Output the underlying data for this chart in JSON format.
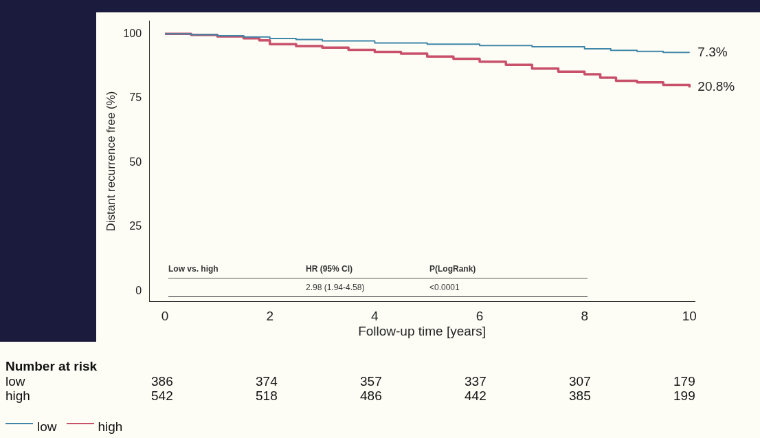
{
  "chart_data": {
    "type": "step",
    "xlabel": "Follow-up time [years]",
    "ylabel": "Distant recurrence free (%)",
    "xlim": [
      -0.3,
      10.1
    ],
    "ylim": [
      -4,
      105
    ],
    "xticks": [
      0,
      2,
      4,
      6,
      8,
      10
    ],
    "yticks": [
      0,
      25,
      50,
      75,
      100
    ],
    "grid": false,
    "legend": "bottom left",
    "marker": "none",
    "line_style": "solid",
    "series": [
      {
        "name": "low",
        "color": "#3f86a8",
        "x": [
          0,
          0.5,
          1,
          1.5,
          2,
          2.5,
          3,
          4,
          5,
          6,
          7,
          8,
          8.5,
          9,
          9.5,
          10
        ],
        "values": [
          100,
          99.7,
          99.3,
          98.8,
          98.2,
          97.8,
          97.3,
          96.5,
          96,
          95.5,
          95,
          94.2,
          93.6,
          93.2,
          92.8,
          92.7
        ]
      },
      {
        "name": "high",
        "color": "#c8506a",
        "x": [
          0,
          0.5,
          1,
          1.5,
          1.8,
          2,
          2.5,
          3,
          3.5,
          4,
          4.5,
          5,
          5.5,
          6,
          6.5,
          7,
          7.5,
          8,
          8.3,
          8.6,
          9,
          9.5,
          10
        ],
        "values": [
          100,
          99.6,
          99,
          98.3,
          97.5,
          96,
          95.3,
          94.7,
          93.8,
          93,
          92.3,
          91.2,
          90.3,
          89.2,
          88,
          86.5,
          85.3,
          84.3,
          83,
          81.8,
          81.2,
          80.2,
          79.2
        ]
      }
    ],
    "annotations": [
      "Low vs. high",
      "HR (95% CI)",
      "P(LogRank)",
      "2.98 (1.94-4.58)",
      "<0.0001",
      "Number at risk",
      "low",
      "386",
      "374",
      "357",
      "337",
      "307",
      "179",
      "high",
      "542",
      "518",
      "486",
      "442",
      "385",
      "199",
      {
        "text": "7.3%",
        "x": 10,
        "y": 92.7
      },
      {
        "text": "20.8%",
        "x": 10,
        "y": 79.2
      }
    ]
  }
}
